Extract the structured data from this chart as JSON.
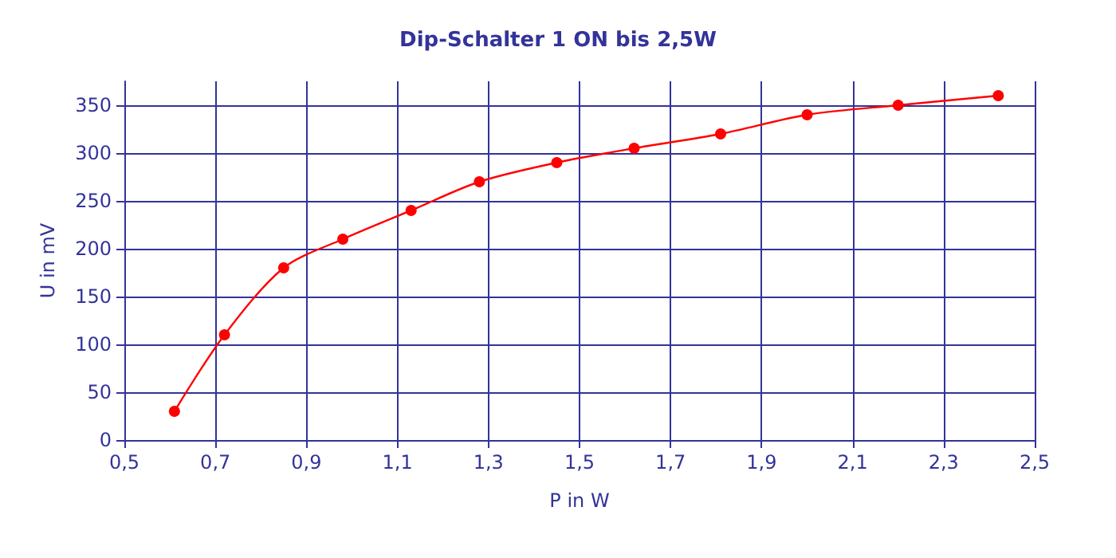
{
  "chart_data": {
    "type": "line",
    "title": "Dip-Schalter 1 ON bis 2,5W",
    "xlabel": "P in W",
    "ylabel": "U in mV",
    "x": [
      0.61,
      0.72,
      0.85,
      0.98,
      1.13,
      1.28,
      1.45,
      1.62,
      1.81,
      2.0,
      2.2,
      2.42
    ],
    "series": [
      {
        "color": "#ff0000",
        "values": [
          30,
          110,
          180,
          210,
          240,
          270,
          290,
          305,
          320,
          340,
          350,
          360
        ]
      }
    ],
    "xlim": [
      0.5,
      2.5
    ],
    "xticks": [
      {
        "value": 0.5,
        "label": "0,5"
      },
      {
        "value": 0.7,
        "label": "0,7"
      },
      {
        "value": 0.9,
        "label": "0,9"
      },
      {
        "value": 1.1,
        "label": "1,1"
      },
      {
        "value": 1.3,
        "label": "1,3"
      },
      {
        "value": 1.5,
        "label": "1,5"
      },
      {
        "value": 1.7,
        "label": "1,7"
      },
      {
        "value": 1.9,
        "label": "1,9"
      },
      {
        "value": 2.1,
        "label": "2,1"
      },
      {
        "value": 2.3,
        "label": "2,3"
      },
      {
        "value": 2.5,
        "label": "2,5"
      }
    ],
    "ylim": [
      0,
      375
    ],
    "yticks": [
      0,
      50,
      100,
      150,
      200,
      250,
      300,
      350
    ],
    "grid": true,
    "marker": "circle",
    "line_style": "solid"
  }
}
